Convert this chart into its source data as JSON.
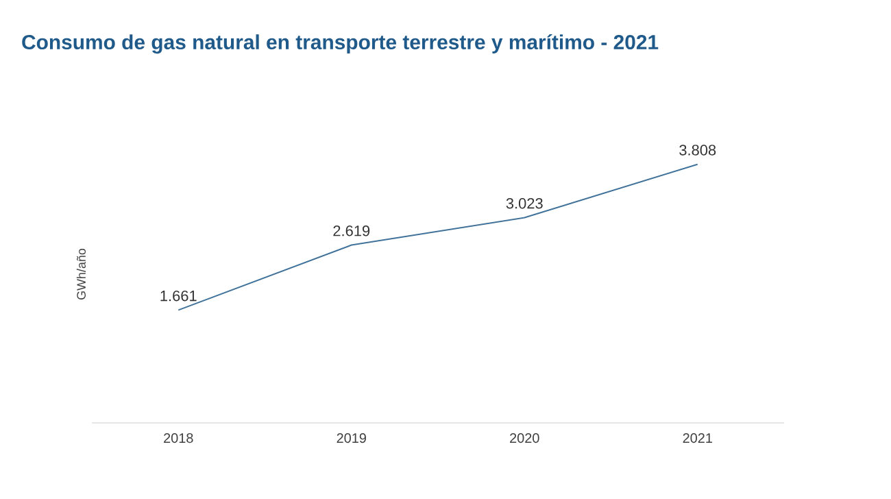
{
  "chart_data": {
    "type": "line",
    "title": "Consumo de gas natural en transporte terrestre y marítimo - 2021",
    "ylabel": "GWh/año",
    "categories": [
      "2018",
      "2019",
      "2020",
      "2021"
    ],
    "series": [
      {
        "color": "#41729a",
        "values": [
          1661,
          2619,
          3023,
          3808
        ],
        "value_labels": [
          "1.661",
          "2.619",
          "3.023",
          "3.808"
        ]
      }
    ],
    "tick_labels": "x",
    "grid": false,
    "marker": "none",
    "line_style": "solid"
  }
}
